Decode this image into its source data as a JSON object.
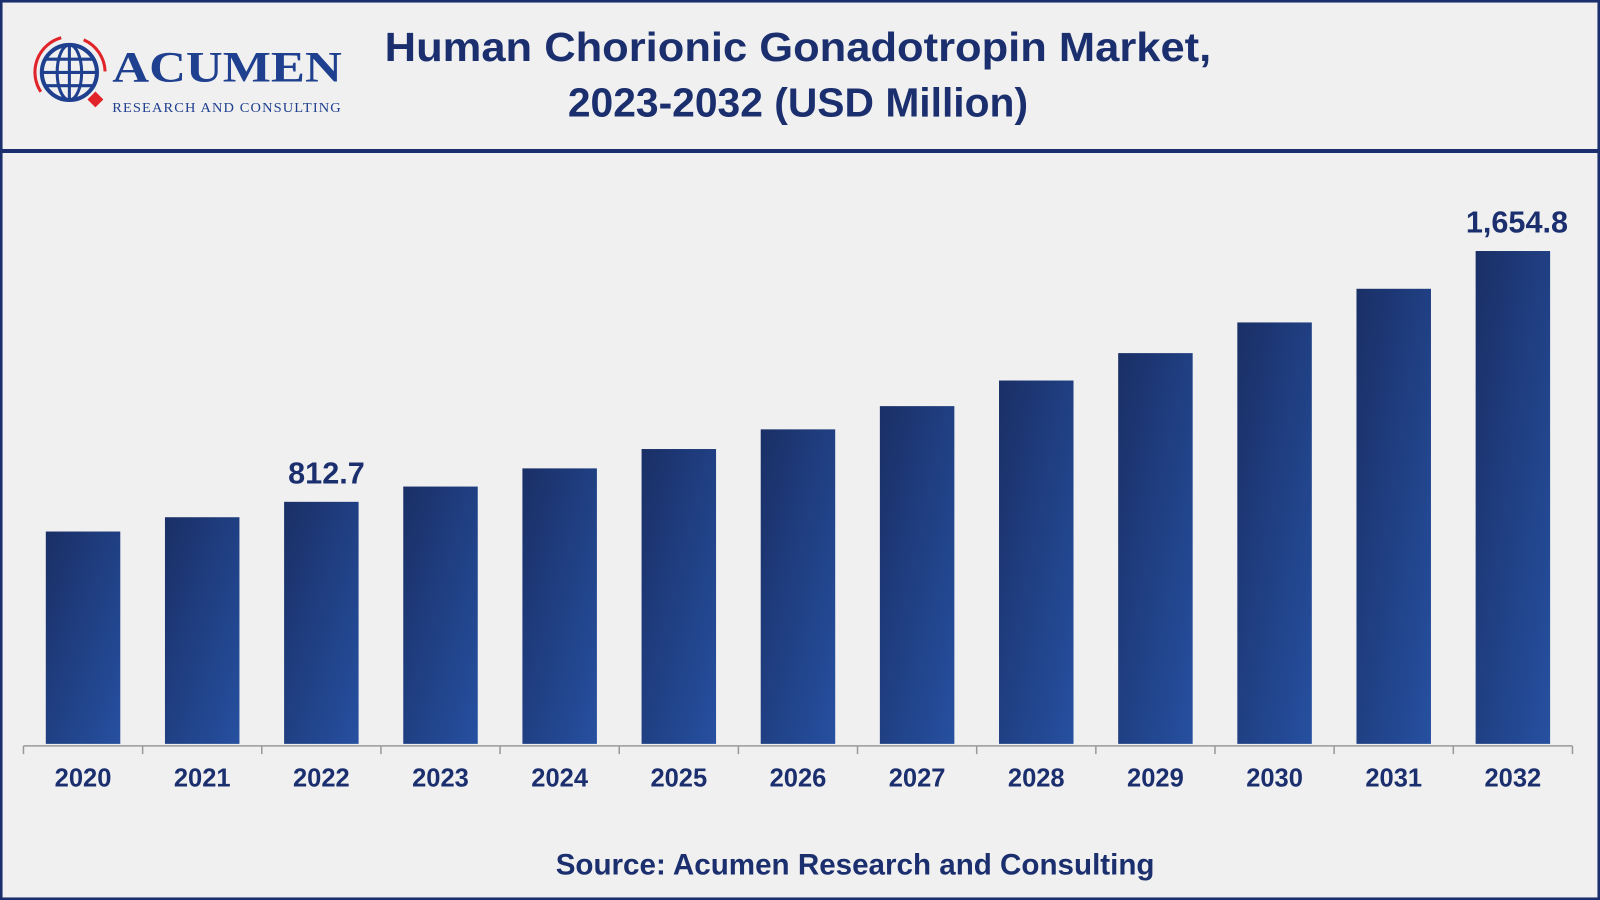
{
  "header": {
    "title_line1": "Human Chorionic Gonadotropin Market,",
    "title_line2": "2023-2032 (USD Million)",
    "logo_main": "ACUMEN",
    "logo_sub": "RESEARCH AND CONSULTING"
  },
  "footer": {
    "source": "Source: Acumen Research and Consulting"
  },
  "colors": {
    "bar": "#1f3f8f",
    "text": "#1b2f6e",
    "frame": "#1b2f6e",
    "logo_accent": "#e0242a"
  },
  "chart_data": {
    "type": "bar",
    "title": "Human Chorionic Gonadotropin Market, 2023-2032 (USD Million)",
    "categories": [
      "2020",
      "2021",
      "2022",
      "2023",
      "2024",
      "2025",
      "2026",
      "2027",
      "2028",
      "2029",
      "2030",
      "2031",
      "2032"
    ],
    "values": [
      713,
      761,
      812.7,
      864,
      925,
      990,
      1056,
      1134,
      1220,
      1312,
      1415,
      1528,
      1654.8
    ],
    "data_labels": {
      "2022": "812.7",
      "2032": "1,654.8"
    },
    "xlabel": "",
    "ylabel": "",
    "ylim": [
      0,
      1800
    ],
    "grid": false,
    "legend": "none"
  }
}
